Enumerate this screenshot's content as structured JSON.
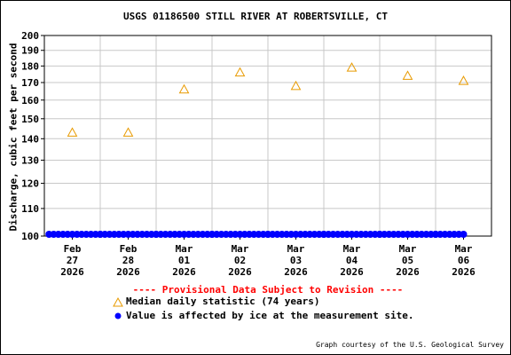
{
  "chart_data": {
    "type": "scatter",
    "title": "USGS 01186500 STILL RIVER AT ROBERTSVILLE, CT",
    "ylabel": "Discharge, cubic feet per second",
    "xlabel": "",
    "yscale": "log",
    "ylim": [
      100,
      200
    ],
    "yticks": [
      100,
      110,
      120,
      130,
      140,
      150,
      160,
      170,
      180,
      190,
      200
    ],
    "xticks": [
      {
        "line1": "Feb",
        "line2": "27",
        "line3": "2026"
      },
      {
        "line1": "Feb",
        "line2": "28",
        "line3": "2026"
      },
      {
        "line1": "Mar",
        "line2": "01",
        "line3": "2026"
      },
      {
        "line1": "Mar",
        "line2": "02",
        "line3": "2026"
      },
      {
        "line1": "Mar",
        "line2": "03",
        "line3": "2026"
      },
      {
        "line1": "Mar",
        "line2": "04",
        "line3": "2026"
      },
      {
        "line1": "Mar",
        "line2": "05",
        "line3": "2026"
      },
      {
        "line1": "Mar",
        "line2": "06",
        "line3": "2026"
      }
    ],
    "series": [
      {
        "name": "Median daily statistic (74 years)",
        "marker": "triangle",
        "color": "#e89a00",
        "values": [
          143,
          143,
          166,
          176,
          168,
          179,
          174,
          171
        ]
      },
      {
        "name": "Value is affected by ice at the measurement site.",
        "marker": "dot",
        "color": "#0000ff",
        "values": [
          100,
          100,
          100,
          100,
          100,
          100,
          100,
          100
        ]
      }
    ],
    "grid": true
  },
  "provisional_text": "---- Provisional Data Subject to Revision ----",
  "credit": "Graph courtesy of the U.S. Geological Survey",
  "colors": {
    "median": "#e89a00",
    "ice": "#0000ff",
    "provisional": "#ff0000",
    "grid": "#c8c8c8"
  }
}
